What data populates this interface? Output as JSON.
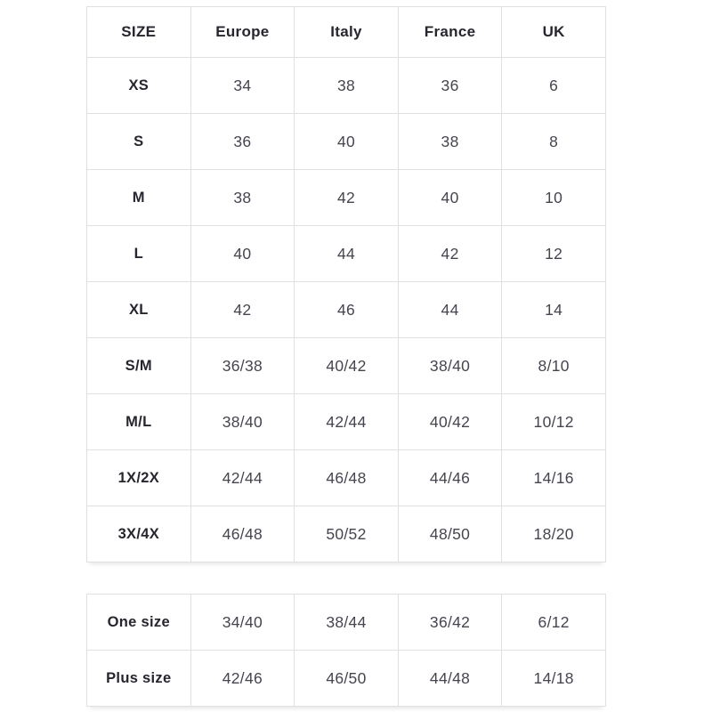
{
  "colors": {
    "background": "#ffffff",
    "border": "#e0e0e0",
    "heading_text": "#26262e",
    "body_text": "#45454f"
  },
  "chart_data": [
    {
      "type": "table",
      "name": "size-conversion-table",
      "columns": [
        "SIZE",
        "Europe",
        "Italy",
        "France",
        "UK"
      ],
      "rows": [
        [
          "XS",
          "34",
          "38",
          "36",
          "6"
        ],
        [
          "S",
          "36",
          "40",
          "38",
          "8"
        ],
        [
          "M",
          "38",
          "42",
          "40",
          "10"
        ],
        [
          "L",
          "40",
          "44",
          "42",
          "12"
        ],
        [
          "XL",
          "42",
          "46",
          "44",
          "14"
        ],
        [
          "S/M",
          "36/38",
          "40/42",
          "38/40",
          "8/10"
        ],
        [
          "M/L",
          "38/40",
          "42/44",
          "40/42",
          "10/12"
        ],
        [
          "1X/2X",
          "42/44",
          "46/48",
          "44/46",
          "14/16"
        ],
        [
          "3X/4X",
          "46/48",
          "50/52",
          "48/50",
          "18/20"
        ]
      ]
    },
    {
      "type": "table",
      "name": "special-sizes-table",
      "columns": [],
      "rows": [
        [
          "One size",
          "34/40",
          "38/44",
          "36/42",
          "6/12"
        ],
        [
          "Plus size",
          "42/46",
          "46/50",
          "44/48",
          "14/18"
        ]
      ]
    }
  ]
}
